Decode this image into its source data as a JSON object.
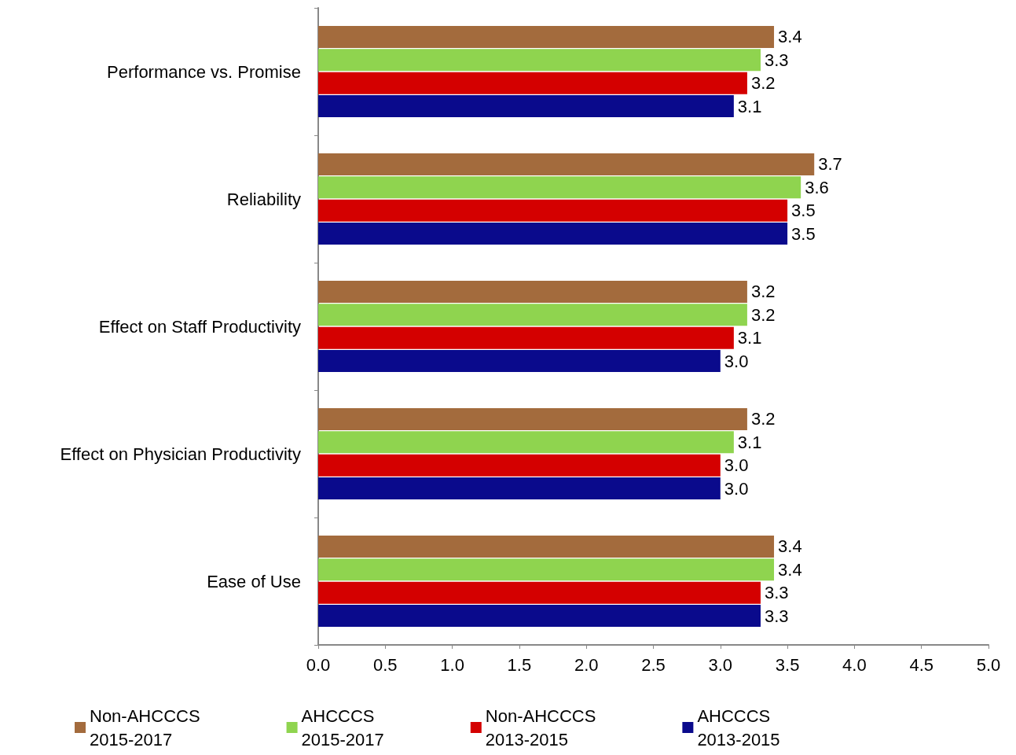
{
  "chart_data": {
    "type": "bar",
    "orientation": "horizontal",
    "categories": [
      "Performance vs. Promise",
      "Reliability",
      "Effect on Staff Productivity",
      "Effect on Physician Productivity",
      "Ease of Use"
    ],
    "series": [
      {
        "name": "Non-AHCCCS 2015-2017",
        "color": "#a36b3d",
        "values": [
          3.4,
          3.7,
          3.2,
          3.2,
          3.4
        ],
        "value_labels": [
          "3.4",
          "3.7",
          "3.2",
          "3.2",
          "3.4"
        ]
      },
      {
        "name": "AHCCCS 2015-2017",
        "color": "#8fd44f",
        "values": [
          3.3,
          3.6,
          3.2,
          3.1,
          3.4
        ],
        "value_labels": [
          "3.3",
          "3.6",
          "3.2",
          "3.1",
          "3.4"
        ]
      },
      {
        "name": "Non-AHCCCS 2013-2015",
        "color": "#d40000",
        "values": [
          3.2,
          3.5,
          3.1,
          3.0,
          3.3
        ],
        "value_labels": [
          "3.2",
          "3.5",
          "3.1",
          "3.0",
          "3.3"
        ]
      },
      {
        "name": "AHCCCS 2013-2015",
        "color": "#0a0a8c",
        "values": [
          3.1,
          3.5,
          3.0,
          3.0,
          3.3
        ],
        "value_labels": [
          "3.1",
          "3.5",
          "3.0",
          "3.0",
          "3.3"
        ]
      }
    ],
    "xlim": [
      0,
      5
    ],
    "xticks": [
      {
        "value": 0,
        "label": "0.0"
      },
      {
        "value": 0.5,
        "label": "0.5"
      },
      {
        "value": 1,
        "label": "1.0"
      },
      {
        "value": 1.5,
        "label": "1.5"
      },
      {
        "value": 2,
        "label": "2.0"
      },
      {
        "value": 2.5,
        "label": "2.5"
      },
      {
        "value": 3,
        "label": "3.0"
      },
      {
        "value": 3.5,
        "label": "3.5"
      },
      {
        "value": 4,
        "label": "4.0"
      },
      {
        "value": 4.5,
        "label": "4.5"
      },
      {
        "value": 5,
        "label": "5.0"
      }
    ],
    "grid": false,
    "legend": "bottom"
  }
}
